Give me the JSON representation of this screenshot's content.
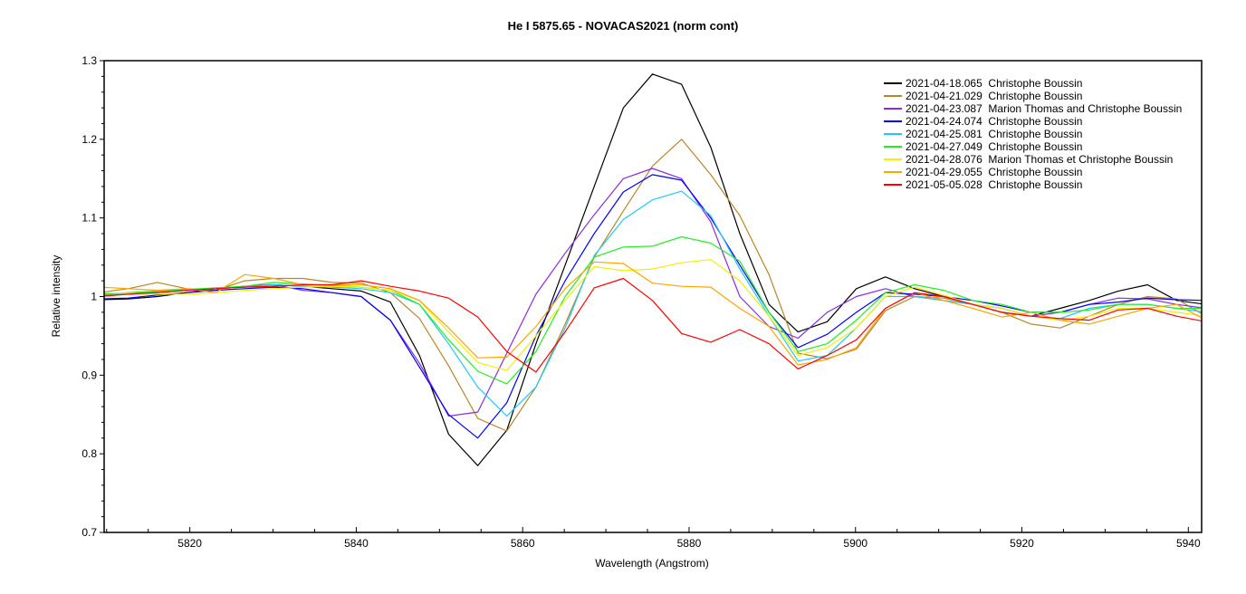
{
  "chart_data": {
    "type": "line",
    "title": "He I 5875.65 - NOVACAS2021 (norm cont)",
    "xlabel": "Wavelength (Angstrom)",
    "ylabel": "Relative intensity",
    "xlim": [
      5809.7,
      5941.6
    ],
    "ylim": [
      0.7,
      1.3
    ],
    "xticks": [
      5820,
      5840,
      5860,
      5880,
      5900,
      5920,
      5940
    ],
    "yticks": [
      0.7,
      0.8,
      0.9,
      1.0,
      1.1,
      1.2,
      1.3
    ],
    "xtick_labels": [
      "5820",
      "5840",
      "5860",
      "5880",
      "5900",
      "5920",
      "5940"
    ],
    "ytick_labels": [
      "0.7",
      "0.8",
      "0.9",
      "1",
      "1.1",
      "1.2",
      "1.3"
    ],
    "legend_position": "top-right",
    "grid": false,
    "x": [
      5809.1,
      5812.6,
      5816.1,
      5819.6,
      5823.1,
      5826.6,
      5830.1,
      5833.6,
      5837.1,
      5840.6,
      5844.1,
      5847.6,
      5851.1,
      5854.6,
      5858.1,
      5861.6,
      5865.1,
      5868.6,
      5872.1,
      5875.6,
      5879.1,
      5882.6,
      5886.1,
      5889.6,
      5893.1,
      5896.6,
      5900.1,
      5903.6,
      5907.1,
      5910.6,
      5914.1,
      5917.6,
      5921.1,
      5924.6,
      5928.1,
      5931.6,
      5935.1,
      5938.6,
      5942.1
    ],
    "series": [
      {
        "name": "2021-04-18.065  Christophe Boussin",
        "color": "#000000",
        "values": [
          0.996,
          0.997,
          1.0,
          1.005,
          1.01,
          1.013,
          1.015,
          1.013,
          1.01,
          1.007,
          0.993,
          0.925,
          0.825,
          0.785,
          0.83,
          0.94,
          1.04,
          1.14,
          1.24,
          1.283,
          1.27,
          1.19,
          1.08,
          0.99,
          0.955,
          0.968,
          1.01,
          1.025,
          1.01,
          1.0,
          0.99,
          0.98,
          0.975,
          0.985,
          0.995,
          1.007,
          1.015,
          0.995,
          0.99
        ]
      },
      {
        "name": "2021-04-21.029  Christophe Boussin",
        "color": "#b8862b",
        "values": [
          1.005,
          1.01,
          1.018,
          1.01,
          1.008,
          1.02,
          1.023,
          1.023,
          1.018,
          1.017,
          1.005,
          0.972,
          0.912,
          0.845,
          0.829,
          0.885,
          0.965,
          1.05,
          1.109,
          1.166,
          1.2,
          1.155,
          1.103,
          1.028,
          0.928,
          0.921,
          0.933,
          0.982,
          1.0,
          0.998,
          0.99,
          0.98,
          0.965,
          0.96,
          0.975,
          0.99,
          1.0,
          0.997,
          0.975
        ]
      },
      {
        "name": "2021-04-23.087  Marion Thomas and Christophe Boussin",
        "color": "#8a2be2",
        "values": [
          1.001,
          1.003,
          1.005,
          1.008,
          1.01,
          1.013,
          1.015,
          1.008,
          1.005,
          1.0,
          0.97,
          0.915,
          0.848,
          0.853,
          0.928,
          1.003,
          1.055,
          1.104,
          1.15,
          1.163,
          1.15,
          1.095,
          1.0,
          0.962,
          0.947,
          0.98,
          1.0,
          1.01,
          1.0,
          0.995,
          0.99,
          0.985,
          0.975,
          0.98,
          0.99,
          0.998,
          0.997,
          0.99,
          0.985
        ]
      },
      {
        "name": "2021-04-24.074  Christophe Boussin",
        "color": "#0000ff",
        "values": [
          0.997,
          0.998,
          1.002,
          1.005,
          1.008,
          1.01,
          1.012,
          1.01,
          1.005,
          1.0,
          0.97,
          0.91,
          0.85,
          0.82,
          0.865,
          0.95,
          1.02,
          1.08,
          1.133,
          1.155,
          1.148,
          1.1,
          1.04,
          0.98,
          0.935,
          0.952,
          0.98,
          1.005,
          1.003,
          1.0,
          0.995,
          0.988,
          0.98,
          0.98,
          0.99,
          0.993,
          0.998,
          0.996,
          0.995
        ]
      },
      {
        "name": "2021-04-25.081  Christophe Boussin",
        "color": "#1ec8ff",
        "values": [
          1.002,
          1.004,
          1.006,
          1.008,
          1.01,
          1.012,
          1.015,
          1.013,
          1.012,
          1.01,
          1.005,
          0.99,
          0.94,
          0.885,
          0.848,
          0.885,
          0.96,
          1.052,
          1.098,
          1.123,
          1.134,
          1.103,
          1.035,
          0.975,
          0.918,
          0.925,
          0.96,
          1.0,
          1.0,
          0.995,
          0.99,
          0.985,
          0.975,
          0.972,
          0.985,
          0.99,
          0.99,
          0.985,
          0.98
        ]
      },
      {
        "name": "2021-04-27.049  Christophe Boussin",
        "color": "#22ee22",
        "values": [
          1.003,
          1.005,
          1.007,
          1.009,
          1.011,
          1.013,
          1.018,
          1.016,
          1.014,
          1.012,
          1.008,
          0.99,
          0.945,
          0.905,
          0.889,
          0.93,
          1.0,
          1.05,
          1.063,
          1.064,
          1.076,
          1.068,
          1.045,
          0.98,
          0.93,
          0.94,
          0.97,
          1.005,
          1.015,
          1.008,
          0.995,
          0.99,
          0.98,
          0.98,
          0.983,
          0.99,
          0.99,
          0.985,
          0.985
        ]
      },
      {
        "name": "2021-04-28.076  Marion Thomas et Christophe Boussin",
        "color": "#f0f000",
        "values": [
          1.005,
          1.004,
          1.003,
          1.003,
          1.005,
          1.008,
          1.01,
          1.012,
          1.013,
          1.012,
          1.008,
          0.995,
          0.955,
          0.916,
          0.906,
          0.95,
          0.995,
          1.038,
          1.033,
          1.035,
          1.043,
          1.047,
          1.02,
          0.975,
          0.925,
          0.935,
          0.96,
          1.0,
          1.012,
          1.002,
          0.99,
          0.985,
          0.975,
          0.97,
          0.975,
          0.985,
          0.985,
          0.98,
          0.975
        ]
      },
      {
        "name": "2021-04-29.055  Christophe Boussin",
        "color": "#ffa500",
        "values": [
          1.012,
          1.01,
          1.008,
          1.01,
          1.005,
          1.028,
          1.023,
          1.015,
          1.015,
          1.015,
          1.01,
          0.995,
          0.96,
          0.922,
          0.923,
          0.962,
          1.01,
          1.044,
          1.042,
          1.017,
          1.013,
          1.012,
          0.985,
          0.962,
          0.913,
          0.92,
          0.935,
          0.985,
          1.005,
          0.995,
          0.985,
          0.974,
          0.98,
          0.97,
          0.965,
          0.975,
          0.985,
          0.99,
          0.97
        ]
      },
      {
        "name": "2021-05-05.028  Christophe Boussin",
        "color": "#ff0000",
        "values": [
          1.0,
          1.003,
          1.005,
          1.008,
          1.01,
          1.012,
          1.013,
          1.015,
          1.015,
          1.02,
          1.013,
          1.007,
          0.998,
          0.974,
          0.93,
          0.904,
          0.955,
          1.011,
          1.023,
          0.995,
          0.953,
          0.942,
          0.958,
          0.94,
          0.908,
          0.925,
          0.945,
          0.985,
          1.005,
          1.0,
          0.99,
          0.98,
          0.975,
          0.972,
          0.97,
          0.983,
          0.985,
          0.975,
          0.968
        ]
      }
    ]
  }
}
